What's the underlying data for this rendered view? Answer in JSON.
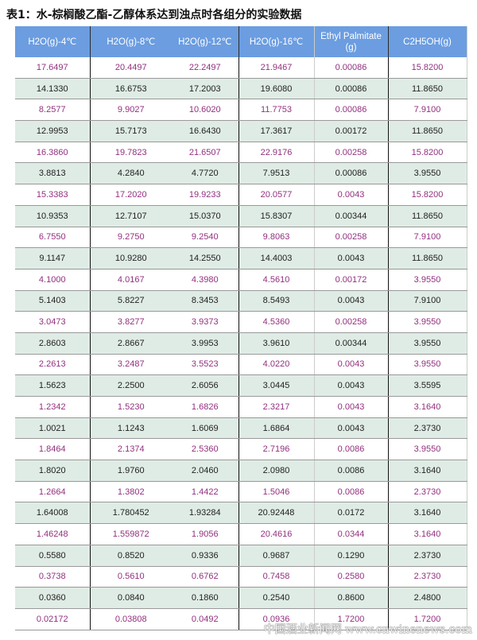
{
  "title": "表1：水-棕榈酸乙酯-乙醇体系达到浊点时各组分的实验数据",
  "colors": {
    "header_bg": "#6b9de0",
    "odd_text": "#93307f",
    "even_bg": "#dfece5"
  },
  "columns": [
    "H2O(g)-4℃",
    "H2O(g)-8℃",
    "H2O(g)-12℃",
    "H2O(g)-16℃",
    "Ethyl Palmitate (g)",
    "C2H5OH(g)"
  ],
  "rows": [
    [
      "17.6497",
      "20.4497",
      "22.2497",
      "21.9467",
      "0.00086",
      "15.8200"
    ],
    [
      "14.1330",
      "16.6753",
      "17.2003",
      "19.6080",
      "0.00086",
      "11.8650"
    ],
    [
      "8.2577",
      "9.9027",
      "10.6020",
      "11.7753",
      "0.00086",
      "7.9100"
    ],
    [
      "12.9953",
      "15.7173",
      "16.6430",
      "17.3617",
      "0.00172",
      "11.8650"
    ],
    [
      "16.3860",
      "19.7823",
      "21.6507",
      "22.9176",
      "0.00258",
      "15.8200"
    ],
    [
      "3.8813",
      "4.2840",
      "4.7720",
      "7.9513",
      "0.00086",
      "3.9550"
    ],
    [
      "15.3383",
      "17.2020",
      "19.9233",
      "20.0577",
      "0.0043",
      "15.8200"
    ],
    [
      "10.9353",
      "12.7107",
      "15.0370",
      "15.8307",
      "0.00344",
      "11.8650"
    ],
    [
      "6.7550",
      "9.2750",
      "9.2540",
      "9.8063",
      "0.00258",
      "7.9100"
    ],
    [
      "9.1147",
      "10.9280",
      "14.2550",
      "14.4003",
      "0.0043",
      "11.8650"
    ],
    [
      "4.1000",
      "4.0167",
      "4.3980",
      "4.5610",
      "0.00172",
      "3.9550"
    ],
    [
      "5.1403",
      "5.8227",
      "8.3453",
      "8.5493",
      "0.0043",
      "7.9100"
    ],
    [
      "3.0473",
      "3.8277",
      "3.9373",
      "4.5360",
      "0.00258",
      "3.9550"
    ],
    [
      "2.8603",
      "2.8667",
      "3.9953",
      "3.9610",
      "0.00344",
      "3.9550"
    ],
    [
      "2.2613",
      "3.2487",
      "3.5523",
      "4.0220",
      "0.0043",
      "3.9550"
    ],
    [
      "1.5623",
      "2.2500",
      "2.6056",
      "3.0445",
      "0.0043",
      "3.5595"
    ],
    [
      "1.2342",
      "1.5230",
      "1.6826",
      "2.3217",
      "0.0043",
      "3.1640"
    ],
    [
      "1.0021",
      "1.1243",
      "1.6069",
      "1.6864",
      "0.0043",
      "2.3730"
    ],
    [
      "1.8464",
      "2.1374",
      "2.5360",
      "2.7196",
      "0.0086",
      "3.9550"
    ],
    [
      "1.8020",
      "1.9760",
      "2.0460",
      "2.0980",
      "0.0086",
      "3.1640"
    ],
    [
      "1.2664",
      "1.3802",
      "1.4422",
      "1.5046",
      "0.0086",
      "2.3730"
    ],
    [
      "1.64008",
      "1.780452",
      "1.93284",
      "20.92448",
      "0.0172",
      "3.1640"
    ],
    [
      "1.46248",
      "1.559872",
      "1.9056",
      "20.4616",
      "0.0344",
      "3.1640"
    ],
    [
      "0.5580",
      "0.8520",
      "0.9336",
      "0.9687",
      "0.1290",
      "2.3730"
    ],
    [
      "0.3738",
      "0.5610",
      "0.6762",
      "0.7458",
      "0.2580",
      "2.3730"
    ],
    [
      "0.0360",
      "0.0840",
      "0.1860",
      "0.2540",
      "0.8600",
      "2.4800"
    ],
    [
      "0.02172",
      "0.03808",
      "0.0492",
      "0.0936",
      "1.7200",
      "1.7200"
    ]
  ],
  "watermark": "中国酒业新闻网 www.cnwinenews.com"
}
